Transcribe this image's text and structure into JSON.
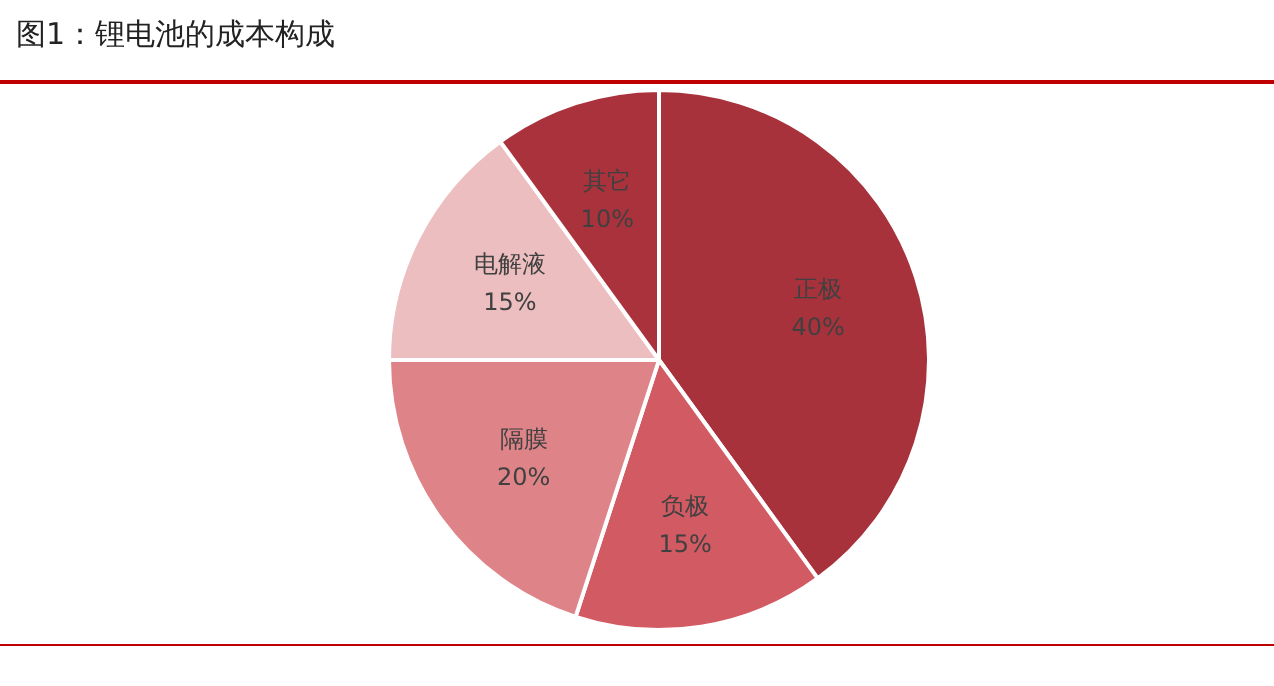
{
  "chart_data": {
    "type": "pie",
    "title": "图1：锂电池的成本构成",
    "categories": [
      "正极",
      "负极",
      "隔膜",
      "电解液",
      "其它"
    ],
    "values": [
      40,
      15,
      20,
      15,
      10
    ],
    "value_labels": [
      "40%",
      "15%",
      "20%",
      "15%",
      "10%"
    ],
    "colors": [
      "#a8323c",
      "#d25a63",
      "#de8488",
      "#ecbec0",
      "#a9323c"
    ],
    "legend": false
  }
}
